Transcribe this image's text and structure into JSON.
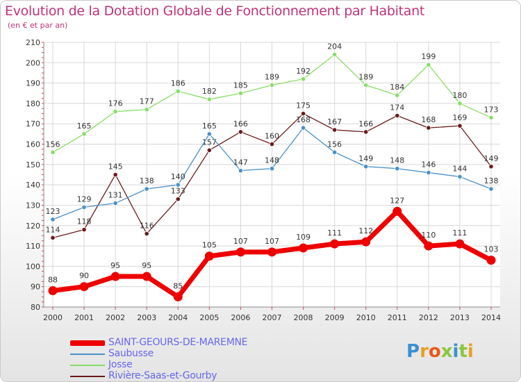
{
  "header": {
    "title": "Evolution de la Dotation Globale de Fonctionnement par Habitant",
    "subtitle": "(en € et par an)"
  },
  "logo": {
    "text": "Proxiti"
  },
  "chart_data": {
    "type": "line",
    "title": "Evolution de la Dotation Globale de Fonctionnement par Habitant",
    "subtitle": "(en € et par an)",
    "xlabel": "",
    "ylabel": "",
    "ylim": [
      80,
      210
    ],
    "yticks": [
      80,
      90,
      100,
      110,
      120,
      130,
      140,
      150,
      160,
      170,
      180,
      190,
      200,
      210
    ],
    "categories": [
      "2000",
      "2001",
      "2002",
      "2003",
      "2004",
      "2005",
      "2006",
      "2007",
      "2008",
      "2009",
      "2010",
      "2011",
      "2012",
      "2013",
      "2014"
    ],
    "legend_position": "bottom-left",
    "series": [
      {
        "name": "Josse",
        "color": "#88dd66",
        "values": [
          156,
          165,
          176,
          177,
          186,
          182,
          185,
          189,
          192,
          204,
          189,
          184,
          199,
          180,
          173
        ]
      },
      {
        "name": "Rivière-Saas-et-Gourby",
        "color": "#6b1a1a",
        "values": [
          114,
          118,
          145,
          116,
          133,
          157,
          166,
          160,
          175,
          167,
          166,
          174,
          168,
          169,
          149
        ]
      },
      {
        "name": "Saubusse",
        "color": "#4a90c8",
        "values": [
          123,
          129,
          131,
          138,
          140,
          165,
          147,
          148,
          168,
          156,
          149,
          148,
          146,
          144,
          138
        ]
      },
      {
        "name": "SAINT-GEOURS-DE-MAREMNE",
        "color": "#ee0000",
        "values": [
          88,
          90,
          95,
          95,
          85,
          105,
          107,
          107,
          109,
          111,
          112,
          127,
          110,
          111,
          103
        ]
      }
    ]
  },
  "legend": {
    "items": [
      {
        "label": "SAINT-GEOURS-DE-MAREMNE",
        "color": "#ee0000"
      },
      {
        "label": "Saubusse",
        "color": "#4a90c8"
      },
      {
        "label": "Josse",
        "color": "#88dd66"
      },
      {
        "label": "Rivière-Saas-et-Gourby",
        "color": "#6b1a1a"
      }
    ]
  }
}
